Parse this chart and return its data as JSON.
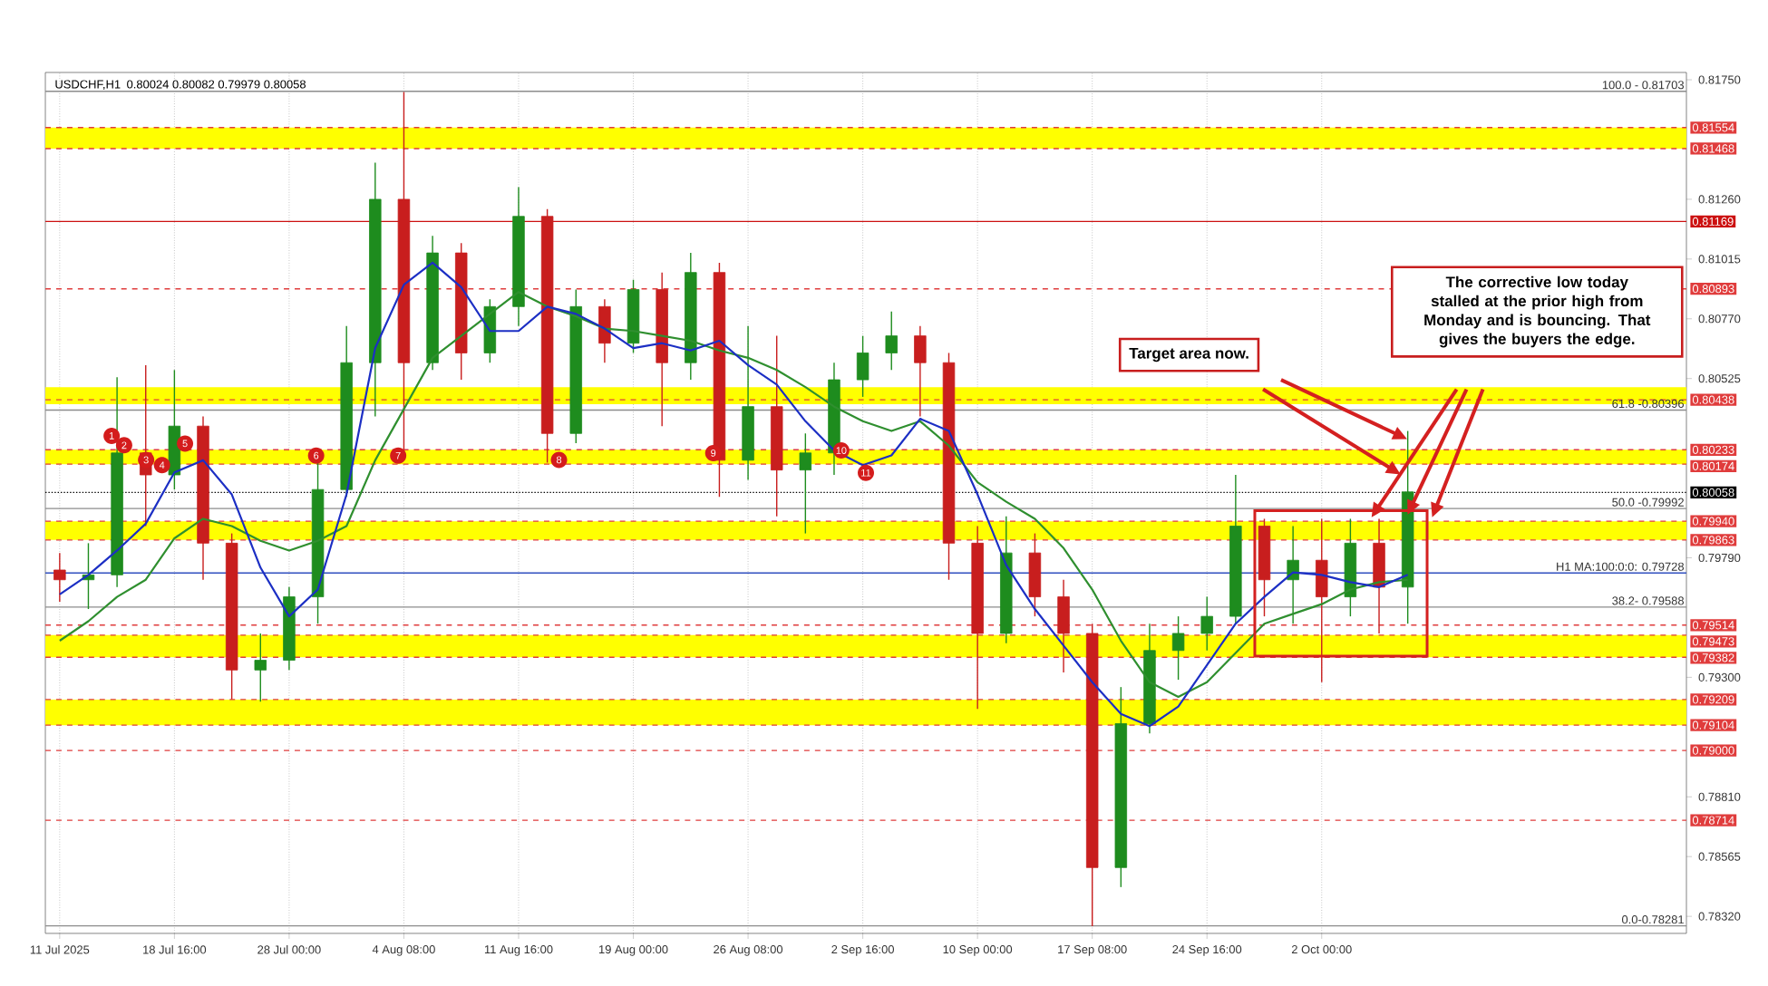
{
  "chart_data": {
    "type": "candlestick",
    "title": "USDCHF,H1",
    "subtitle": "0.80024 0.80082 0.79979 0.80058",
    "categories": [
      "11 Jul 2025",
      null,
      null,
      null,
      "18 Jul 16:00",
      null,
      null,
      null,
      "28 Jul 00:00",
      null,
      null,
      null,
      "4 Aug 08:00",
      null,
      null,
      null,
      "11 Aug 16:00",
      null,
      null,
      null,
      "19 Aug 00:00",
      null,
      null,
      null,
      "26 Aug 08:00",
      null,
      null,
      null,
      "2 Sep 16:00",
      null,
      null,
      null,
      "10 Sep 00:00",
      null,
      null,
      null,
      "17 Sep 08:00",
      null,
      null,
      null,
      "24 Sep 16:00",
      null,
      null,
      null,
      "2 Oct 00:00",
      null,
      null,
      null
    ],
    "ohlc": [
      [
        0.7974,
        0.7981,
        0.7961,
        0.797
      ],
      [
        0.797,
        0.7985,
        0.7958,
        0.7972
      ],
      [
        0.7972,
        0.8053,
        0.7967,
        0.8022
      ],
      [
        0.8022,
        0.8058,
        0.7992,
        0.8013
      ],
      [
        0.8013,
        0.8056,
        0.8007,
        0.8033
      ],
      [
        0.8033,
        0.8037,
        0.797,
        0.7985
      ],
      [
        0.7985,
        0.7989,
        0.7921,
        0.7933
      ],
      [
        0.7933,
        0.7948,
        0.792,
        0.7937
      ],
      [
        0.7937,
        0.7967,
        0.7933,
        0.7963
      ],
      [
        0.7963,
        0.8019,
        0.7952,
        0.8007
      ],
      [
        0.8007,
        0.8074,
        0.8004,
        0.8059
      ],
      [
        0.8059,
        0.8141,
        0.8037,
        0.8126
      ],
      [
        0.8126,
        0.817,
        0.8019,
        0.8059
      ],
      [
        0.8059,
        0.8111,
        0.8056,
        0.8104
      ],
      [
        0.8104,
        0.8108,
        0.8052,
        0.8063
      ],
      [
        0.8063,
        0.8085,
        0.8059,
        0.8082
      ],
      [
        0.8082,
        0.8131,
        0.8074,
        0.8119
      ],
      [
        0.8119,
        0.8122,
        0.8018,
        0.803
      ],
      [
        0.803,
        0.8089,
        0.8026,
        0.8082
      ],
      [
        0.8082,
        0.8085,
        0.8059,
        0.8067
      ],
      [
        0.8067,
        0.8093,
        0.8063,
        0.8089
      ],
      [
        0.8089,
        0.8096,
        0.8033,
        0.8059
      ],
      [
        0.8059,
        0.8104,
        0.8052,
        0.8096
      ],
      [
        0.8096,
        0.81,
        0.8004,
        0.8019
      ],
      [
        0.8019,
        0.8074,
        0.8011,
        0.8041
      ],
      [
        0.8041,
        0.807,
        0.7996,
        0.8015
      ],
      [
        0.8015,
        0.803,
        0.7989,
        0.8022
      ],
      [
        0.8022,
        0.8059,
        0.8013,
        0.8052
      ],
      [
        0.8052,
        0.807,
        0.8045,
        0.8063
      ],
      [
        0.8063,
        0.808,
        0.8056,
        0.807
      ],
      [
        0.807,
        0.8074,
        0.8037,
        0.8059
      ],
      [
        0.8059,
        0.8063,
        0.797,
        0.7985
      ],
      [
        0.7985,
        0.7992,
        0.7917,
        0.7948
      ],
      [
        0.7948,
        0.7996,
        0.7944,
        0.7981
      ],
      [
        0.7981,
        0.7989,
        0.7955,
        0.7963
      ],
      [
        0.7963,
        0.797,
        0.7932,
        0.7948
      ],
      [
        0.7948,
        0.7952,
        0.7828,
        0.7852
      ],
      [
        0.7852,
        0.7926,
        0.7844,
        0.7911
      ],
      [
        0.7911,
        0.7952,
        0.7907,
        0.7941
      ],
      [
        0.7941,
        0.7955,
        0.7929,
        0.7948
      ],
      [
        0.7948,
        0.7963,
        0.7941,
        0.7955
      ],
      [
        0.7955,
        0.8013,
        0.7952,
        0.7992
      ],
      [
        0.7992,
        0.7995,
        0.7955,
        0.797
      ],
      [
        0.797,
        0.7992,
        0.7952,
        0.7978
      ],
      [
        0.7978,
        0.7995,
        0.7928,
        0.7963
      ],
      [
        0.7963,
        0.7995,
        0.7955,
        0.7985
      ],
      [
        0.7985,
        0.7995,
        0.7948,
        0.7967
      ],
      [
        0.7967,
        0.8031,
        0.7952,
        0.8006
      ]
    ],
    "colors": [
      "#c81e1e",
      "#1e8c1e",
      "#1e8c1e",
      "#c81e1e",
      "#1e8c1e",
      "#c81e1e",
      "#c81e1e",
      "#1e8c1e",
      "#1e8c1e",
      "#1e8c1e",
      "#1e8c1e",
      "#1e8c1e",
      "#c81e1e",
      "#1e8c1e",
      "#c81e1e",
      "#1e8c1e",
      "#1e8c1e",
      "#c81e1e",
      "#1e8c1e",
      "#c81e1e",
      "#1e8c1e",
      "#c81e1e",
      "#1e8c1e",
      "#c81e1e",
      "#1e8c1e",
      "#c81e1e",
      "#1e8c1e",
      "#1e8c1e",
      "#1e8c1e",
      "#1e8c1e",
      "#c81e1e",
      "#c81e1e",
      "#c81e1e",
      "#1e8c1e",
      "#c81e1e",
      "#c81e1e",
      "#c81e1e",
      "#1e8c1e",
      "#1e8c1e",
      "#1e8c1e",
      "#1e8c1e",
      "#1e8c1e",
      "#c81e1e",
      "#1e8c1e",
      "#c81e1e",
      "#1e8c1e",
      "#c81e1e",
      "#1e8c1e"
    ],
    "series": [
      {
        "type": "line",
        "color": "#2f8f2f",
        "values": [
          0.7945,
          0.7953,
          0.7963,
          0.797,
          0.7987,
          0.7995,
          0.7992,
          0.7986,
          0.7982,
          0.7986,
          0.7992,
          0.8019,
          0.804,
          0.8061,
          0.807,
          0.8079,
          0.8088,
          0.8082,
          0.8078,
          0.8073,
          0.8072,
          0.807,
          0.8068,
          0.8064,
          0.8061,
          0.8056,
          0.8049,
          0.8041,
          0.8035,
          0.8031,
          0.8035,
          0.8025,
          0.801,
          0.8002,
          0.7995,
          0.7983,
          0.7966,
          0.7945,
          0.7928,
          0.7922,
          0.7928,
          0.794,
          0.7952,
          0.7956,
          0.796,
          0.7966,
          0.7969,
          0.797
        ]
      },
      {
        "type": "line",
        "color": "#1c2fc4",
        "values": [
          0.7964,
          0.7972,
          0.7982,
          0.7993,
          0.8014,
          0.8019,
          0.8005,
          0.7975,
          0.7955,
          0.7966,
          0.8005,
          0.8065,
          0.8091,
          0.81,
          0.809,
          0.8072,
          0.8072,
          0.8082,
          0.8079,
          0.8073,
          0.8065,
          0.8067,
          0.8064,
          0.8068,
          0.8058,
          0.805,
          0.8035,
          0.8023,
          0.8017,
          0.8021,
          0.8036,
          0.8031,
          0.8005,
          0.7976,
          0.7958,
          0.7943,
          0.7928,
          0.7915,
          0.791,
          0.7918,
          0.7935,
          0.7952,
          0.7963,
          0.7973,
          0.7972,
          0.7969,
          0.7967,
          0.7972
        ]
      }
    ],
    "ylim": [
      0.7825,
      0.8178
    ],
    "yticks": [
      {
        "value": 0.7832,
        "label": "0.78320"
      },
      {
        "value": 0.78565,
        "label": "0.78565"
      },
      {
        "value": 0.7881,
        "label": "0.78810"
      },
      {
        "value": 0.793,
        "label": "0.79300"
      },
      {
        "value": 0.7979,
        "label": "0.79790"
      },
      {
        "value": 0.80525,
        "label": "0.80525"
      },
      {
        "value": 0.8077,
        "label": "0.80770"
      },
      {
        "value": 0.81015,
        "label": "0.81015"
      },
      {
        "value": 0.8126,
        "label": "0.81260"
      },
      {
        "value": 0.8175,
        "label": "0.81750"
      }
    ],
    "grid": "x",
    "bands": [
      {
        "axis": "y",
        "from": 0.81468,
        "to": 0.81554,
        "color": "#ffff00"
      },
      {
        "axis": "y",
        "from": 0.8042,
        "to": 0.8049,
        "color": "#ffff00"
      },
      {
        "axis": "y",
        "from": 0.80174,
        "to": 0.80233,
        "color": "#ffff00"
      },
      {
        "axis": "y",
        "from": 0.79863,
        "to": 0.7994,
        "color": "#ffff00"
      },
      {
        "axis": "y",
        "from": 0.79382,
        "to": 0.79473,
        "color": "#ffff00"
      },
      {
        "axis": "y",
        "from": 0.79104,
        "to": 0.79209,
        "color": "#ffff00"
      }
    ],
    "ref_lines": [
      {
        "axis": "y",
        "value": 0.81554,
        "label": "0.81554",
        "color": "#e03c3c",
        "line_style": "dashed"
      },
      {
        "axis": "y",
        "value": 0.81468,
        "label": "0.81468",
        "color": "#e03c3c",
        "line_style": "dashed"
      },
      {
        "axis": "y",
        "value": 0.81169,
        "label": "0.81169",
        "color": "#cc1111",
        "line_style": "solid"
      },
      {
        "axis": "y",
        "value": 0.80893,
        "label": "0.80893",
        "color": "#e03c3c",
        "line_style": "dashed"
      },
      {
        "axis": "y",
        "value": 0.80438,
        "label": "0.80438",
        "color": "#e03c3c",
        "line_style": "dashed"
      },
      {
        "axis": "y",
        "value": 0.80233,
        "label": "0.80233",
        "color": "#e03c3c",
        "line_style": "dashed"
      },
      {
        "axis": "y",
        "value": 0.80174,
        "label": "0.80174",
        "color": "#e03c3c",
        "line_style": "dashed"
      },
      {
        "axis": "y",
        "value": 0.80058,
        "label": "0.80058",
        "color": "#000000",
        "line_style": "dotted"
      },
      {
        "axis": "y",
        "value": 0.7994,
        "label": "0.79940",
        "color": "#e03c3c",
        "line_style": "dashed"
      },
      {
        "axis": "y",
        "value": 0.79863,
        "label": "0.79863",
        "color": "#e03c3c",
        "line_style": "dashed"
      },
      {
        "axis": "y",
        "value": 0.79514,
        "label": "0.79514",
        "color": "#e03c3c",
        "line_style": "dashed"
      },
      {
        "axis": "y",
        "value": 0.79473,
        "label": "0.79473",
        "color": "#e03c3c",
        "line_style": "dashed"
      },
      {
        "axis": "y",
        "value": 0.79382,
        "label": "0.79382",
        "color": "#e03c3c",
        "line_style": "dashed"
      },
      {
        "axis": "y",
        "value": 0.79209,
        "label": "0.79209",
        "color": "#e03c3c",
        "line_style": "dashed"
      },
      {
        "axis": "y",
        "value": 0.79104,
        "label": "0.79104",
        "color": "#e03c3c",
        "line_style": "dashed"
      },
      {
        "axis": "y",
        "value": 0.79,
        "label": "0.79000",
        "color": "#e03c3c",
        "line_style": "dashed"
      },
      {
        "axis": "y",
        "value": 0.78714,
        "label": "0.78714",
        "color": "#e03c3c",
        "line_style": "dashed"
      },
      {
        "axis": "y",
        "value": 0.81703,
        "color": "#8c8c8c",
        "line_style": "solid"
      },
      {
        "axis": "y",
        "value": 0.80396,
        "color": "#8c8c8c",
        "line_style": "solid"
      },
      {
        "axis": "y",
        "value": 0.79992,
        "color": "#8c8c8c",
        "line_style": "solid"
      },
      {
        "axis": "y",
        "value": 0.79588,
        "color": "#8c8c8c",
        "line_style": "solid"
      },
      {
        "axis": "y",
        "value": 0.78281,
        "color": "#8c8c8c",
        "line_style": "solid"
      },
      {
        "axis": "y",
        "value": 0.79728,
        "color": "#3050c0",
        "line_style": "solid"
      }
    ],
    "annotations": [
      "Target area now.",
      "The corrective low today stalled at the prior high from Monday and is bouncing. That gives the buyers the edge.",
      "1",
      "2",
      "3",
      "4",
      "5",
      "6",
      "7",
      "8",
      "9",
      "10",
      "11",
      {
        "text": "100.0 - 0.81703",
        "y": 0.81703
      },
      {
        "text": "61.8 -0.80396",
        "y": 0.80396
      },
      {
        "text": "50.0 -0.79992",
        "y": 0.79992
      },
      {
        "text": "38.2- 0.79588",
        "y": 0.79588
      },
      {
        "text": "0.0-0.78281",
        "y": 0.78281
      },
      {
        "text": "H1 MA:100:0:0: 0.79728",
        "y": 0.79728
      }
    ]
  }
}
